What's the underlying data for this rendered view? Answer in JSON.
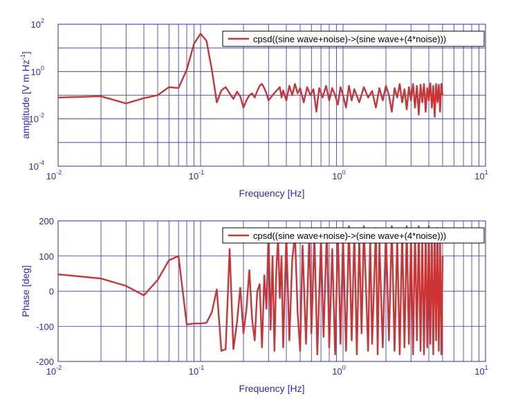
{
  "colors": {
    "axis": "#2b2bb8",
    "grid": "#2b2bb8",
    "line": "#cc3333",
    "background": "#ffffff"
  },
  "chart_data": [
    {
      "type": "line",
      "xscale": "log",
      "yscale": "log",
      "xlim": [
        0.01,
        10
      ],
      "ylim": [
        0.0001,
        100
      ],
      "xlabel": "Frequency  [Hz]",
      "ylabel": "amplitude  [V m Hz",
      "ylabel_sup": "-1",
      "ylabel_close": "]",
      "grid": true,
      "legend_position": "top-right",
      "x_ticks": [
        {
          "base": "10",
          "exp": "-2"
        },
        {
          "base": "10",
          "exp": "-1"
        },
        {
          "base": "10",
          "exp": "0"
        },
        {
          "base": "10",
          "exp": "1"
        }
      ],
      "y_ticks": [
        {
          "base": "10",
          "exp": "-4"
        },
        {
          "base": "10",
          "exp": "-2"
        },
        {
          "base": "10",
          "exp": "0"
        },
        {
          "base": "10",
          "exp": "2"
        }
      ],
      "series": [
        {
          "name": "cpsd((sine wave+noise)->(sine wave+(4*noise)))",
          "points": [
            [
              0.01,
              0.08
            ],
            [
              0.02,
              0.09
            ],
            [
              0.03,
              0.045
            ],
            [
              0.04,
              0.075
            ],
            [
              0.05,
              0.1
            ],
            [
              0.06,
              0.22
            ],
            [
              0.07,
              0.2
            ],
            [
              0.08,
              1.2
            ],
            [
              0.09,
              15
            ],
            [
              0.1,
              40
            ],
            [
              0.11,
              20
            ],
            [
              0.12,
              1.2
            ],
            [
              0.13,
              0.05
            ],
            [
              0.14,
              0.16
            ],
            [
              0.15,
              0.22
            ],
            [
              0.16,
              0.12
            ],
            [
              0.17,
              0.07
            ],
            [
              0.18,
              0.14
            ],
            [
              0.19,
              0.09
            ],
            [
              0.2,
              0.03
            ],
            [
              0.21,
              0.06
            ],
            [
              0.22,
              0.1
            ],
            [
              0.23,
              0.12
            ],
            [
              0.24,
              0.08
            ],
            [
              0.25,
              0.15
            ],
            [
              0.26,
              0.25
            ],
            [
              0.27,
              0.3
            ],
            [
              0.28,
              0.2
            ],
            [
              0.29,
              0.12
            ],
            [
              0.3,
              0.06
            ],
            [
              0.32,
              0.1
            ],
            [
              0.34,
              0.15
            ],
            [
              0.36,
              0.22
            ],
            [
              0.37,
              0.08
            ],
            [
              0.38,
              0.16
            ],
            [
              0.4,
              0.06
            ],
            [
              0.42,
              0.25
            ],
            [
              0.44,
              0.1
            ],
            [
              0.46,
              0.3
            ],
            [
              0.48,
              0.12
            ],
            [
              0.5,
              0.2
            ],
            [
              0.53,
              0.05
            ],
            [
              0.56,
              0.22
            ],
            [
              0.59,
              0.1
            ],
            [
              0.62,
              0.18
            ],
            [
              0.65,
              0.02
            ],
            [
              0.68,
              0.2
            ],
            [
              0.72,
              0.08
            ],
            [
              0.76,
              0.25
            ],
            [
              0.8,
              0.06
            ],
            [
              0.84,
              0.2
            ],
            [
              0.88,
              0.1
            ],
            [
              0.92,
              0.04
            ],
            [
              0.96,
              0.22
            ],
            [
              1.0,
              0.1
            ],
            [
              1.05,
              0.03
            ],
            [
              1.1,
              0.25
            ],
            [
              1.15,
              0.06
            ],
            [
              1.2,
              0.18
            ],
            [
              1.3,
              0.05
            ],
            [
              1.4,
              0.22
            ],
            [
              1.5,
              0.08
            ],
            [
              1.6,
              0.15
            ],
            [
              1.7,
              0.03
            ],
            [
              1.8,
              0.2
            ],
            [
              1.9,
              0.06
            ],
            [
              2.0,
              0.25
            ],
            [
              2.1,
              0.1
            ],
            [
              2.2,
              0.02
            ],
            [
              2.3,
              0.2
            ],
            [
              2.4,
              0.08
            ],
            [
              2.5,
              0.3
            ],
            [
              2.6,
              0.05
            ],
            [
              2.7,
              0.18
            ],
            [
              2.8,
              0.025
            ],
            [
              2.9,
              0.22
            ],
            [
              3.0,
              0.06
            ],
            [
              3.1,
              0.3
            ],
            [
              3.2,
              0.03
            ],
            [
              3.3,
              0.25
            ],
            [
              3.4,
              0.015
            ],
            [
              3.5,
              0.28
            ],
            [
              3.6,
              0.05
            ],
            [
              3.7,
              0.3
            ],
            [
              3.8,
              0.02
            ],
            [
              3.9,
              0.2
            ],
            [
              4.0,
              0.06
            ],
            [
              4.1,
              0.32
            ],
            [
              4.2,
              0.03
            ],
            [
              4.3,
              0.25
            ],
            [
              4.4,
              0.012
            ],
            [
              4.5,
              0.3
            ],
            [
              4.6,
              0.05
            ],
            [
              4.7,
              0.28
            ],
            [
              4.8,
              0.02
            ],
            [
              4.9,
              0.3
            ],
            [
              5.0,
              0.1
            ]
          ]
        }
      ]
    },
    {
      "type": "line",
      "xscale": "log",
      "yscale": "linear",
      "xlim": [
        0.01,
        10
      ],
      "ylim": [
        -200,
        200
      ],
      "xlabel": "Frequency  [Hz]",
      "ylabel": "Phase [deg]",
      "grid": true,
      "legend_position": "top-right",
      "x_ticks": [
        {
          "base": "10",
          "exp": "-2"
        },
        {
          "base": "10",
          "exp": "-1"
        },
        {
          "base": "10",
          "exp": "0"
        },
        {
          "base": "10",
          "exp": "1"
        }
      ],
      "y_ticks": [
        {
          "label": "-200",
          "value": -200
        },
        {
          "label": "-100",
          "value": -100
        },
        {
          "label": "0",
          "value": 0
        },
        {
          "label": "100",
          "value": 100
        },
        {
          "label": "200",
          "value": 200
        }
      ],
      "series": [
        {
          "name": "cpsd((sine wave+noise)->(sine wave+(4*noise)))",
          "points": [
            [
              0.01,
              48
            ],
            [
              0.02,
              36
            ],
            [
              0.03,
              15
            ],
            [
              0.04,
              -12
            ],
            [
              0.05,
              32
            ],
            [
              0.06,
              88
            ],
            [
              0.07,
              100
            ],
            [
              0.08,
              -95
            ],
            [
              0.09,
              -92
            ],
            [
              0.1,
              -92
            ],
            [
              0.11,
              -90
            ],
            [
              0.12,
              -60
            ],
            [
              0.13,
              5
            ],
            [
              0.14,
              -170
            ],
            [
              0.15,
              -165
            ],
            [
              0.16,
              120
            ],
            [
              0.17,
              -165
            ],
            [
              0.18,
              -90
            ],
            [
              0.19,
              10
            ],
            [
              0.2,
              -120
            ],
            [
              0.21,
              -50
            ],
            [
              0.22,
              60
            ],
            [
              0.23,
              -80
            ],
            [
              0.24,
              -140
            ],
            [
              0.25,
              0
            ],
            [
              0.26,
              20
            ],
            [
              0.27,
              -160
            ],
            [
              0.28,
              45
            ],
            [
              0.29,
              -50
            ],
            [
              0.3,
              170
            ],
            [
              0.31,
              -110
            ],
            [
              0.32,
              100
            ],
            [
              0.33,
              -170
            ],
            [
              0.34,
              60
            ],
            [
              0.35,
              150
            ],
            [
              0.36,
              -20
            ],
            [
              0.37,
              100
            ],
            [
              0.38,
              -160
            ],
            [
              0.4,
              160
            ],
            [
              0.42,
              -140
            ],
            [
              0.44,
              90
            ],
            [
              0.46,
              160
            ],
            [
              0.48,
              -60
            ],
            [
              0.5,
              -170
            ],
            [
              0.52,
              130
            ],
            [
              0.55,
              -150
            ],
            [
              0.58,
              170
            ],
            [
              0.6,
              -120
            ],
            [
              0.63,
              160
            ],
            [
              0.66,
              -180
            ],
            [
              0.7,
              150
            ],
            [
              0.73,
              -130
            ],
            [
              0.77,
              180
            ],
            [
              0.8,
              -160
            ],
            [
              0.84,
              120
            ],
            [
              0.88,
              -180
            ],
            [
              0.92,
              170
            ],
            [
              0.96,
              -150
            ],
            [
              1.0,
              160
            ],
            [
              1.05,
              -170
            ],
            [
              1.1,
              185
            ],
            [
              1.15,
              -140
            ],
            [
              1.2,
              170
            ],
            [
              1.25,
              -180
            ],
            [
              1.3,
              150
            ],
            [
              1.35,
              -120
            ],
            [
              1.4,
              185
            ],
            [
              1.5,
              -170
            ],
            [
              1.55,
              160
            ],
            [
              1.6,
              -150
            ],
            [
              1.7,
              180
            ],
            [
              1.75,
              -180
            ],
            [
              1.8,
              140
            ],
            [
              1.9,
              -160
            ],
            [
              2.0,
              175
            ],
            [
              2.1,
              -140
            ],
            [
              2.2,
              185
            ],
            [
              2.3,
              -170
            ],
            [
              2.4,
              150
            ],
            [
              2.5,
              -180
            ],
            [
              2.6,
              170
            ],
            [
              2.7,
              -160
            ],
            [
              2.8,
              185
            ],
            [
              2.9,
              -150
            ],
            [
              3.0,
              160
            ],
            [
              3.1,
              -180
            ],
            [
              3.2,
              175
            ],
            [
              3.3,
              -140
            ],
            [
              3.4,
              185
            ],
            [
              3.5,
              -170
            ],
            [
              3.6,
              150
            ],
            [
              3.7,
              -180
            ],
            [
              3.8,
              170
            ],
            [
              3.9,
              -160
            ],
            [
              4.0,
              185
            ],
            [
              4.1,
              -150
            ],
            [
              4.2,
              160
            ],
            [
              4.3,
              -180
            ],
            [
              4.4,
              175
            ],
            [
              4.5,
              -140
            ],
            [
              4.6,
              180
            ],
            [
              4.7,
              -170
            ],
            [
              4.8,
              150
            ],
            [
              4.9,
              -180
            ],
            [
              5.0,
              100
            ]
          ]
        }
      ]
    }
  ]
}
